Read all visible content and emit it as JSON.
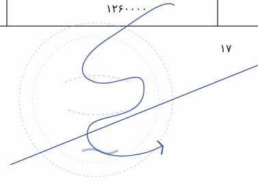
{
  "table": {
    "cell": "۱۲۶۰۰۰۰"
  },
  "page_number": "۱۷"
}
